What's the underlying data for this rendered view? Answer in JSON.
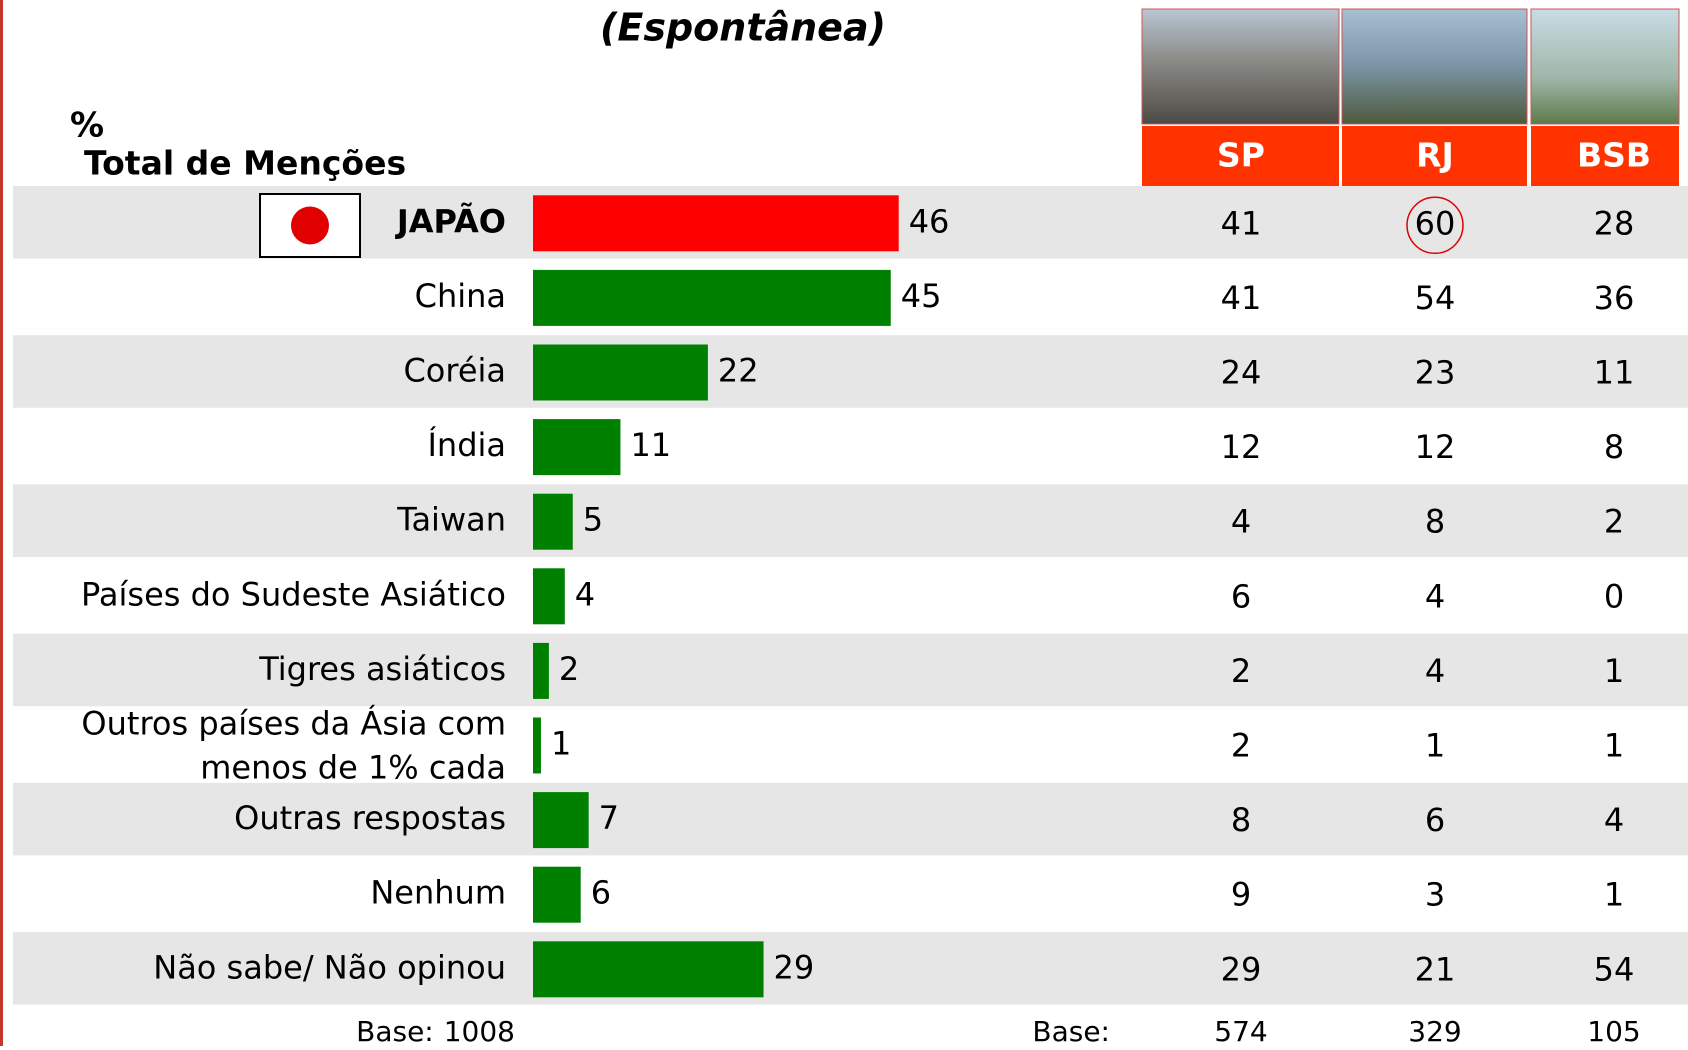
{
  "chart_data": {
    "type": "bar",
    "title": "(Espontânea)",
    "unit": "%",
    "subtitle": "Total de Menções",
    "categories": [
      "JAPÃO",
      "China",
      "Coréia",
      "Índia",
      "Taiwan",
      "Países do Sudeste Asiático",
      "Tigres asiáticos",
      "Outros países da Ásia com menos de 1% cada",
      "Outras respostas",
      "Nenhum",
      "Não sabe/ Não opinou"
    ],
    "values": [
      46,
      45,
      22,
      11,
      5,
      4,
      2,
      1,
      7,
      6,
      29
    ],
    "colors": [
      "#ff0000",
      "#008000",
      "#008000",
      "#008000",
      "#008000",
      "#008000",
      "#008000",
      "#008000",
      "#008000",
      "#008000",
      "#008000"
    ],
    "base_label": "Base:",
    "base_total": 1008
  },
  "table": {
    "columns": [
      "SP",
      "RJ",
      "BSB"
    ],
    "rows": [
      [
        41,
        60,
        28
      ],
      [
        41,
        54,
        36
      ],
      [
        24,
        23,
        11
      ],
      [
        12,
        12,
        8
      ],
      [
        4,
        8,
        2
      ],
      [
        6,
        4,
        0
      ],
      [
        2,
        4,
        1
      ],
      [
        2,
        1,
        1
      ],
      [
        8,
        6,
        4
      ],
      [
        9,
        3,
        1
      ],
      [
        29,
        21,
        54
      ]
    ],
    "base": [
      574,
      329,
      105
    ],
    "highlight_cell": [
      0,
      1
    ]
  }
}
